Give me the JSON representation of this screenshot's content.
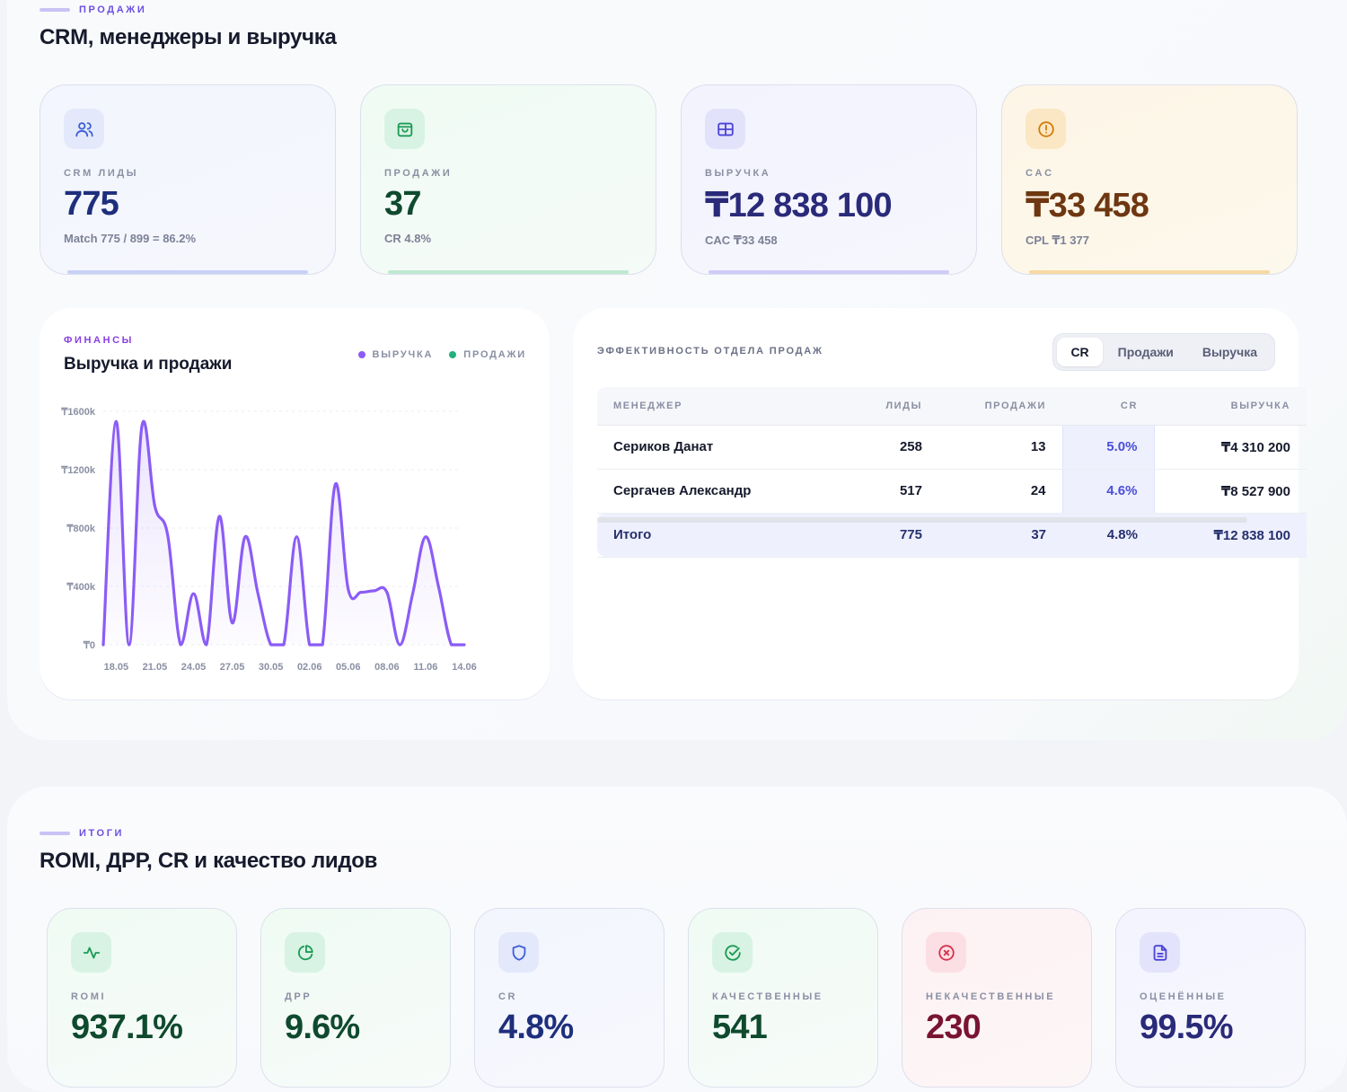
{
  "section1": {
    "eyebrow": "ПРОДАЖИ",
    "title": "CRM, менеджеры и выручка"
  },
  "kpis": [
    {
      "label": "CRM ЛИДЫ",
      "value": "775",
      "sub": "Match 775 / 899 = 86.2%",
      "icon": "users-icon"
    },
    {
      "label": "ПРОДАЖИ",
      "value": "37",
      "sub": "CR 4.8%",
      "icon": "shopping-bag-icon"
    },
    {
      "label": "ВЫРУЧКА",
      "value": "₸12 838 100",
      "sub": "CAC ₸33 458",
      "icon": "grid-icon"
    },
    {
      "label": "CAC",
      "value": "₸33 458",
      "sub": "CPL ₸1 377",
      "icon": "alert-circle-icon"
    }
  ],
  "finance": {
    "eyebrow": "ФИНАНСЫ",
    "title": "Выручка и продажи",
    "legend": [
      {
        "label": "ВЫРУЧКА",
        "color": "#8b5cf6"
      },
      {
        "label": "ПРОДАЖИ",
        "color": "#22b07d"
      }
    ]
  },
  "chart_data": {
    "type": "line",
    "x": [
      "17.05",
      "18.05",
      "19.05",
      "20.05",
      "21.05",
      "22.05",
      "23.05",
      "24.05",
      "25.05",
      "26.05",
      "27.05",
      "28.05",
      "29.05",
      "30.05",
      "31.05",
      "01.06",
      "02.06",
      "03.06",
      "04.06",
      "05.06",
      "06.06",
      "07.06",
      "08.06",
      "09.06",
      "10.06",
      "11.06",
      "12.06",
      "13.06",
      "14.06"
    ],
    "x_ticks": [
      "18.05",
      "21.05",
      "24.05",
      "27.05",
      "30.05",
      "02.06",
      "05.06",
      "08.06",
      "11.06",
      "14.06"
    ],
    "y_ticks": [
      "₸0",
      "₸400k",
      "₸800k",
      "₸1200k",
      "₸1600k"
    ],
    "ylim": [
      0,
      1600000
    ],
    "series": [
      {
        "name": "ВЫРУЧКА",
        "color": "#8b5cf6",
        "values": [
          0,
          1530000,
          0,
          1500000,
          950000,
          750000,
          0,
          350000,
          0,
          880000,
          150000,
          740000,
          350000,
          0,
          0,
          740000,
          0,
          0,
          1100000,
          380000,
          360000,
          370000,
          360000,
          0,
          350000,
          740000,
          400000,
          0,
          0
        ]
      }
    ]
  },
  "team": {
    "title": "ЭФФЕКТИВНОСТЬ ОТДЕЛА ПРОДАЖ",
    "tabs": [
      "CR",
      "Продажи",
      "Выручка"
    ],
    "active_tab": "CR",
    "columns": [
      "МЕНЕДЖЕР",
      "ЛИДЫ",
      "ПРОДАЖИ",
      "CR",
      "ВЫРУЧКА"
    ],
    "rows": [
      [
        "Сериков Данат",
        "258",
        "13",
        "5.0%",
        "₸4 310 200"
      ],
      [
        "Сергачев Александр",
        "517",
        "24",
        "4.6%",
        "₸8 527 900"
      ]
    ],
    "total": [
      "Итого",
      "775",
      "37",
      "4.8%",
      "₸12 838 100"
    ]
  },
  "section2": {
    "eyebrow": "ИТОГИ",
    "title": "ROMI, ДРР, CR и качество лидов"
  },
  "kpis2": [
    {
      "label": "ROMI",
      "value": "937.1%",
      "icon": "activity-icon"
    },
    {
      "label": "ДРР",
      "value": "9.6%",
      "icon": "pie-chart-icon"
    },
    {
      "label": "CR",
      "value": "4.8%",
      "icon": "shield-icon"
    },
    {
      "label": "КАЧЕСТВЕННЫЕ",
      "value": "541",
      "icon": "check-circle-icon"
    },
    {
      "label": "НЕКАЧЕСТВЕННЫЕ",
      "value": "230",
      "icon": "x-circle-icon"
    },
    {
      "label": "ОЦЕНЁННЫЕ",
      "value": "99.5%",
      "icon": "file-text-icon"
    }
  ]
}
